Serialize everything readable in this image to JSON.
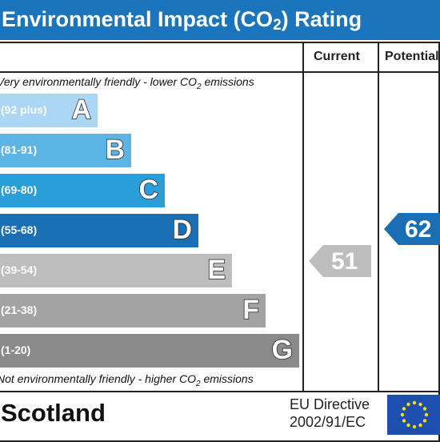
{
  "header": {
    "title_prefix": "Environmental Impact (CO",
    "title_subscript": "2",
    "title_suffix": ") Rating"
  },
  "columns": {
    "current": "Current",
    "potential": "Potential"
  },
  "notes": {
    "top_prefix": "Very environmentally friendly - lower CO",
    "top_sub": "2",
    "top_suffix": " emissions",
    "bottom_prefix": "Not environmentally friendly - higher CO",
    "bottom_sub": "2",
    "bottom_suffix": " emissions"
  },
  "bands": [
    {
      "letter": "A",
      "range": "(92 plus)",
      "color": "#abd6f4"
    },
    {
      "letter": "B",
      "range": "(81-91)",
      "color": "#5cb4e4"
    },
    {
      "letter": "C",
      "range": "(69-80)",
      "color": "#2a9ed8"
    },
    {
      "letter": "D",
      "range": "(55-68)",
      "color": "#1a6fb4"
    },
    {
      "letter": "E",
      "range": "(39-54)",
      "color": "#bdbdbd"
    },
    {
      "letter": "F",
      "range": "(21-38)",
      "color": "#a3a3a3"
    },
    {
      "letter": "G",
      "range": "(1-20)",
      "color": "#8a8a8a"
    }
  ],
  "ratings": {
    "current": {
      "value": "51",
      "band": "E",
      "color": "#bdbdbd"
    },
    "potential": {
      "value": "62",
      "band": "D",
      "color": "#1a6fb4"
    }
  },
  "footer": {
    "country": "Scotland",
    "directive_line1": "EU Directive",
    "directive_line2": "2002/91/EC",
    "flag_color": "#1d4fb0",
    "star_color": "#ffdd00"
  }
}
